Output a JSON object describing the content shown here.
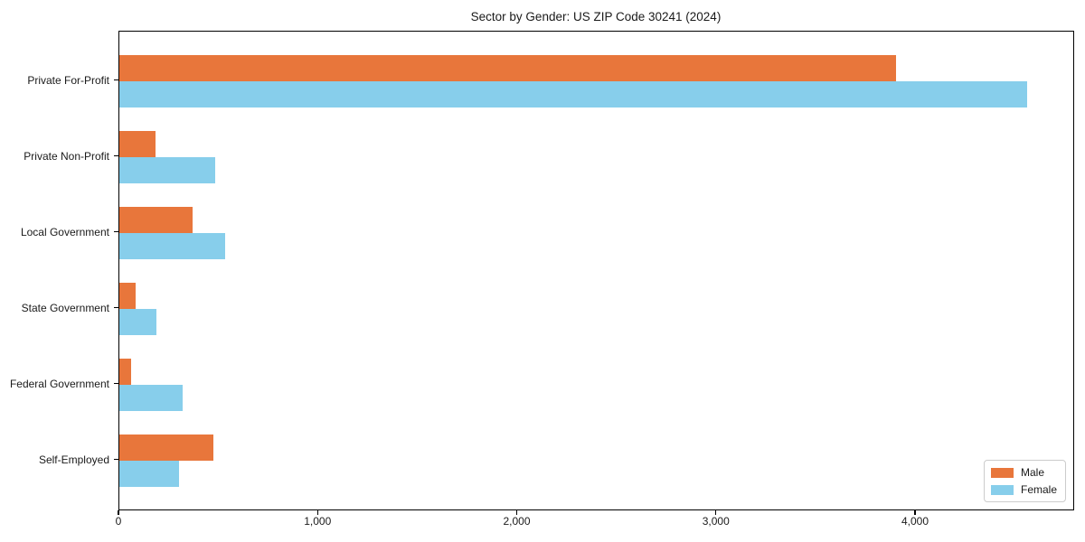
{
  "chart": {
    "title": "Sector by Gender: US ZIP Code 30241 (2024)"
  },
  "chart_data": {
    "type": "bar",
    "orientation": "horizontal",
    "title": "Sector by Gender: US ZIP Code 30241 (2024)",
    "categories": [
      "Private For-Profit",
      "Private Non-Profit",
      "Local Government",
      "State Government",
      "Federal Government",
      "Self-Employed"
    ],
    "series": [
      {
        "name": "Male",
        "color": "#e8763b",
        "values": [
          3900,
          180,
          370,
          80,
          60,
          470
        ]
      },
      {
        "name": "Female",
        "color": "#87ceeb",
        "values": [
          4560,
          480,
          530,
          185,
          320,
          300
        ]
      }
    ],
    "xlabel": "",
    "ylabel": "",
    "xlim": [
      0,
      4790
    ],
    "xticks": [
      0,
      1000,
      2000,
      3000,
      4000
    ],
    "xtick_labels": [
      "0",
      "1,000",
      "2,000",
      "3,000",
      "4,000"
    ],
    "grid": false,
    "legend_position": "lower right",
    "background_color": "#ffffff",
    "axis_color": "#000000"
  }
}
